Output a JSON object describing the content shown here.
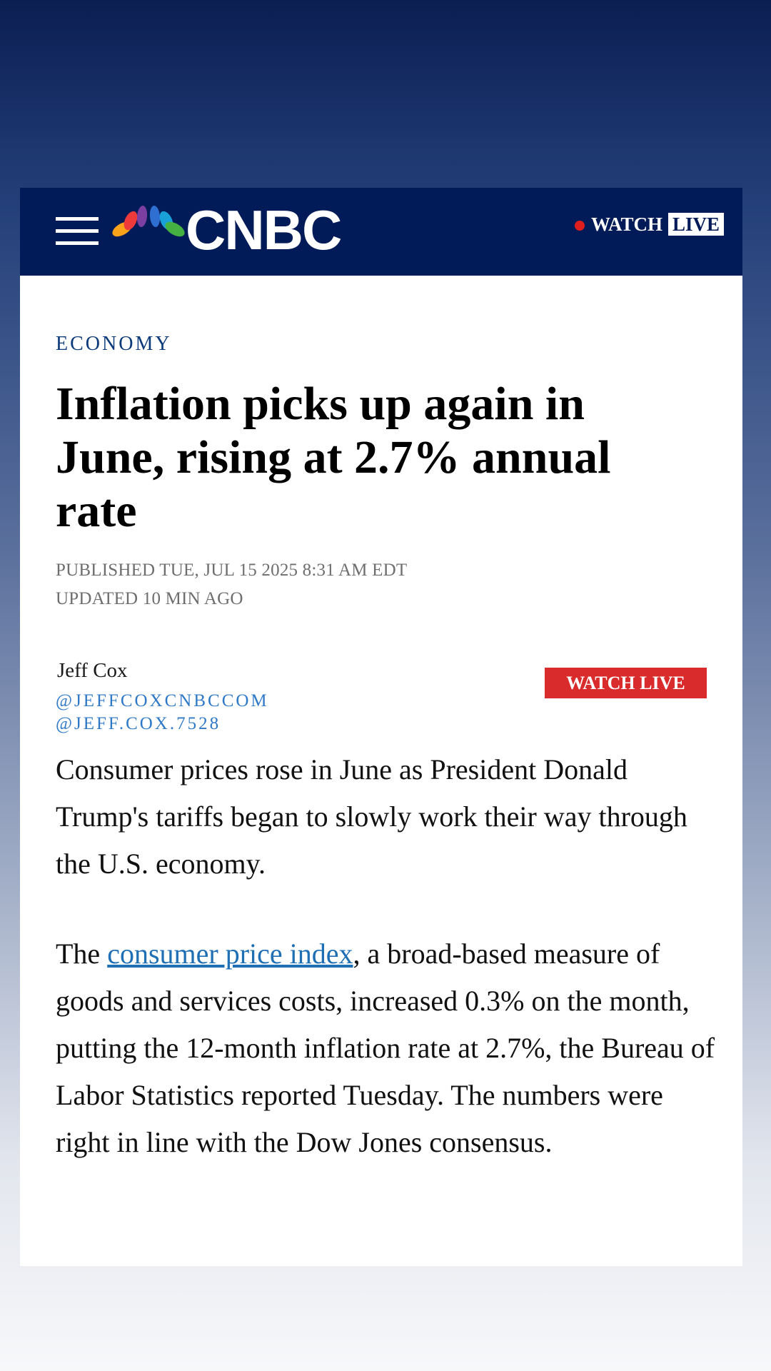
{
  "header": {
    "brand": "CNBC",
    "watch_label": "WATCH",
    "live_label": "LIVE",
    "colors": {
      "bar": "#001b57",
      "live_dot": "#e01e1e"
    }
  },
  "article": {
    "category": "ECONOMY",
    "headline": "Inflation picks up again in June, rising at 2.7% annual rate",
    "published": "PUBLISHED TUE, JUL 15 2025 8:31 AM EDT",
    "updated": "UPDATED 10 MIN AGO",
    "author": "Jeff Cox",
    "social": [
      "@JEFFCOXCNBCCOM",
      "@JEFF.COX.7528"
    ],
    "watch_live_button": "WATCH LIVE",
    "paragraph1": "Consumer prices rose in June as President Donald Trump's tariffs began to slowly work their way through the U.S. economy.",
    "paragraph2": {
      "before": "The ",
      "link": "consumer price index",
      "after": ", a broad-based measure of goods and services costs, increased 0.3% on the month, putting the 12-month inflation rate at 2.7%, the Bureau of Labor Statistics reported Tuesday. The numbers were right in line with the Dow Jones consensus."
    }
  }
}
